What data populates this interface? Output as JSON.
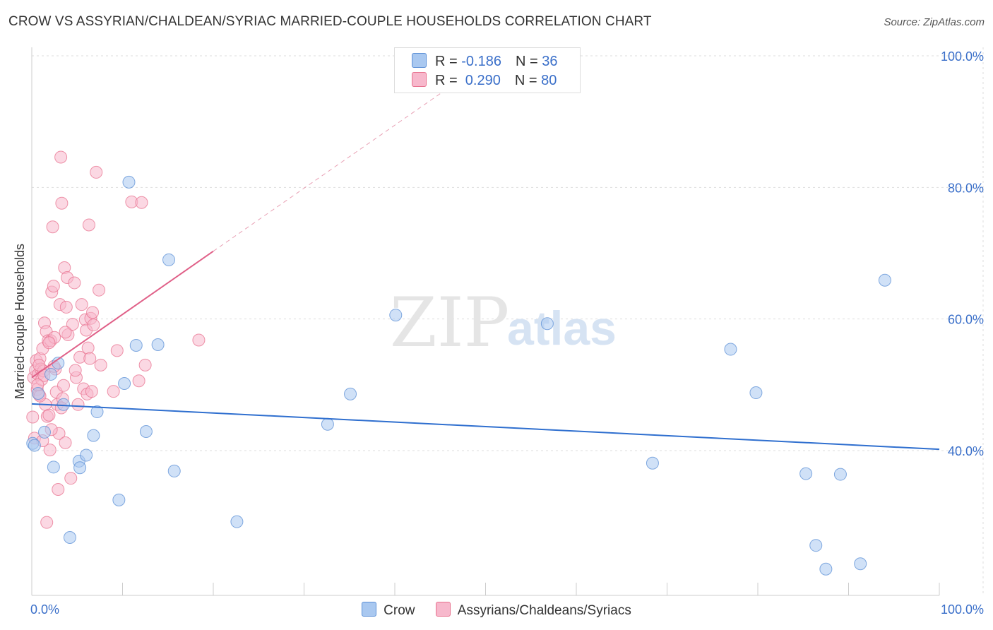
{
  "header": {
    "title": "CROW VS ASSYRIAN/CHALDEAN/SYRIAC MARRIED-COUPLE HOUSEHOLDS CORRELATION CHART",
    "source": "Source: ZipAtlas.com"
  },
  "watermark": {
    "zip": "ZIP",
    "atlas": "atlas"
  },
  "legend": {
    "rows": [
      {
        "r_label": "R = ",
        "r_value": "-0.186",
        "n_label": "N = ",
        "n_value": "36",
        "color": "#a9c8f0"
      },
      {
        "r_label": "R = ",
        "r_value": " 0.290",
        "n_label": "N = ",
        "n_value": "80",
        "color": "#f7b8cc"
      }
    ]
  },
  "bottom_legend": {
    "items": [
      {
        "label": "Crow",
        "color": "#a9c8f0"
      },
      {
        "label": "Assyrians/Chaldeans/Syriacs",
        "color": "#f7b8cc"
      }
    ]
  },
  "chart_data": {
    "type": "scatter",
    "title": "CROW VS ASSYRIAN/CHALDEAN/SYRIAC MARRIED-COUPLE HOUSEHOLDS CORRELATION CHART",
    "xlabel": "",
    "ylabel": "Married-couple Households",
    "xlim": [
      0,
      100
    ],
    "ylim": [
      18,
      100
    ],
    "x_tick_labels": [
      "0.0%",
      "100.0%"
    ],
    "y_ticks": [
      {
        "value": 100,
        "label": "100.0%"
      },
      {
        "value": 80,
        "label": "80.0%"
      },
      {
        "value": 60,
        "label": "60.0%"
      },
      {
        "value": 40,
        "label": "40.0%"
      }
    ],
    "grid": true,
    "series": [
      {
        "name": "Crow",
        "color": "#5b8fd6",
        "fill": "#a9c8f0",
        "r": -0.186,
        "n": 36,
        "trend": {
          "x0": 0,
          "y0": 47.1,
          "x1": 100,
          "y1": 40.2
        },
        "points": [
          [
            0.1,
            41.1
          ],
          [
            0.3,
            40.8
          ],
          [
            0.7,
            48.7
          ],
          [
            1.4,
            42.8
          ],
          [
            2.1,
            51.6
          ],
          [
            2.4,
            37.5
          ],
          [
            2.9,
            53.3
          ],
          [
            3.5,
            47.0
          ],
          [
            4.2,
            26.8
          ],
          [
            5.2,
            38.4
          ],
          [
            5.3,
            37.4
          ],
          [
            6.0,
            39.3
          ],
          [
            6.8,
            42.3
          ],
          [
            7.2,
            45.9
          ],
          [
            9.6,
            32.5
          ],
          [
            10.2,
            50.2
          ],
          [
            10.7,
            80.8
          ],
          [
            11.5,
            56.0
          ],
          [
            12.6,
            42.9
          ],
          [
            13.9,
            56.1
          ],
          [
            15.1,
            69.0
          ],
          [
            15.7,
            36.9
          ],
          [
            22.6,
            29.2
          ],
          [
            32.6,
            44.0
          ],
          [
            35.1,
            48.6
          ],
          [
            40.1,
            60.6
          ],
          [
            56.8,
            59.3
          ],
          [
            68.4,
            38.1
          ],
          [
            77.0,
            55.4
          ],
          [
            79.8,
            48.8
          ],
          [
            85.3,
            36.5
          ],
          [
            86.4,
            25.6
          ],
          [
            87.5,
            22.0
          ],
          [
            89.1,
            36.4
          ],
          [
            91.3,
            22.8
          ],
          [
            94.0,
            65.9
          ]
        ]
      },
      {
        "name": "Assyrians/Chaldeans/Syriacs",
        "color": "#e8728f",
        "fill": "#f7b8cc",
        "r": 0.29,
        "n": 80,
        "trend": {
          "x0": 0,
          "y0": 51.1,
          "x1": 20,
          "y1": 70.3
        },
        "trend_ext": {
          "x0": 20,
          "y0": 70.3,
          "x1": 46,
          "y1": 95.2
        },
        "points": [
          [
            0.1,
            45.1
          ],
          [
            0.2,
            51.1
          ],
          [
            0.3,
            41.9
          ],
          [
            0.4,
            52.2
          ],
          [
            0.5,
            53.7
          ],
          [
            0.6,
            49.3
          ],
          [
            0.7,
            51.6
          ],
          [
            0.8,
            48.5
          ],
          [
            0.9,
            54.0
          ],
          [
            1.0,
            52.4
          ],
          [
            1.1,
            50.8
          ],
          [
            1.2,
            55.5
          ],
          [
            1.3,
            52.1
          ],
          [
            1.4,
            59.4
          ],
          [
            1.5,
            47.0
          ],
          [
            1.6,
            58.1
          ],
          [
            1.7,
            45.2
          ],
          [
            1.8,
            56.7
          ],
          [
            1.9,
            45.4
          ],
          [
            2.0,
            40.1
          ],
          [
            2.1,
            56.7
          ],
          [
            2.2,
            64.1
          ],
          [
            2.3,
            74.0
          ],
          [
            2.4,
            65.0
          ],
          [
            2.5,
            57.2
          ],
          [
            2.6,
            52.4
          ],
          [
            2.7,
            48.9
          ],
          [
            2.8,
            47.0
          ],
          [
            2.9,
            34.1
          ],
          [
            3.0,
            42.6
          ],
          [
            3.1,
            62.2
          ],
          [
            3.2,
            84.6
          ],
          [
            3.3,
            77.6
          ],
          [
            3.4,
            47.9
          ],
          [
            3.5,
            49.9
          ],
          [
            3.6,
            67.8
          ],
          [
            3.7,
            41.2
          ],
          [
            3.8,
            61.8
          ],
          [
            3.9,
            66.3
          ],
          [
            4.0,
            57.6
          ],
          [
            4.3,
            35.8
          ],
          [
            4.5,
            59.2
          ],
          [
            4.7,
            65.5
          ],
          [
            4.9,
            51.1
          ],
          [
            5.1,
            47.0
          ],
          [
            5.3,
            54.2
          ],
          [
            5.5,
            62.2
          ],
          [
            5.7,
            49.4
          ],
          [
            5.9,
            59.9
          ],
          [
            6.0,
            58.3
          ],
          [
            6.1,
            48.6
          ],
          [
            6.2,
            55.6
          ],
          [
            6.3,
            74.3
          ],
          [
            6.4,
            54.0
          ],
          [
            6.5,
            60.1
          ],
          [
            6.6,
            49.0
          ],
          [
            6.7,
            61.0
          ],
          [
            6.8,
            59.1
          ],
          [
            7.1,
            82.3
          ],
          [
            7.4,
            64.4
          ],
          [
            7.6,
            53.0
          ],
          [
            9.0,
            49.0
          ],
          [
            9.4,
            55.2
          ],
          [
            11.0,
            77.8
          ],
          [
            11.8,
            50.6
          ],
          [
            12.1,
            77.7
          ],
          [
            12.5,
            53.0
          ],
          [
            18.4,
            56.8
          ],
          [
            1.65,
            29.1
          ],
          [
            0.8,
            53.0
          ],
          [
            1.35,
            51.4
          ],
          [
            2.45,
            52.8
          ],
          [
            3.25,
            46.5
          ],
          [
            1.9,
            56.4
          ],
          [
            0.9,
            48.3
          ],
          [
            4.8,
            52.2
          ],
          [
            3.7,
            58.0
          ],
          [
            1.2,
            41.5
          ],
          [
            0.65,
            50.0
          ],
          [
            2.15,
            43.2
          ]
        ]
      }
    ]
  }
}
